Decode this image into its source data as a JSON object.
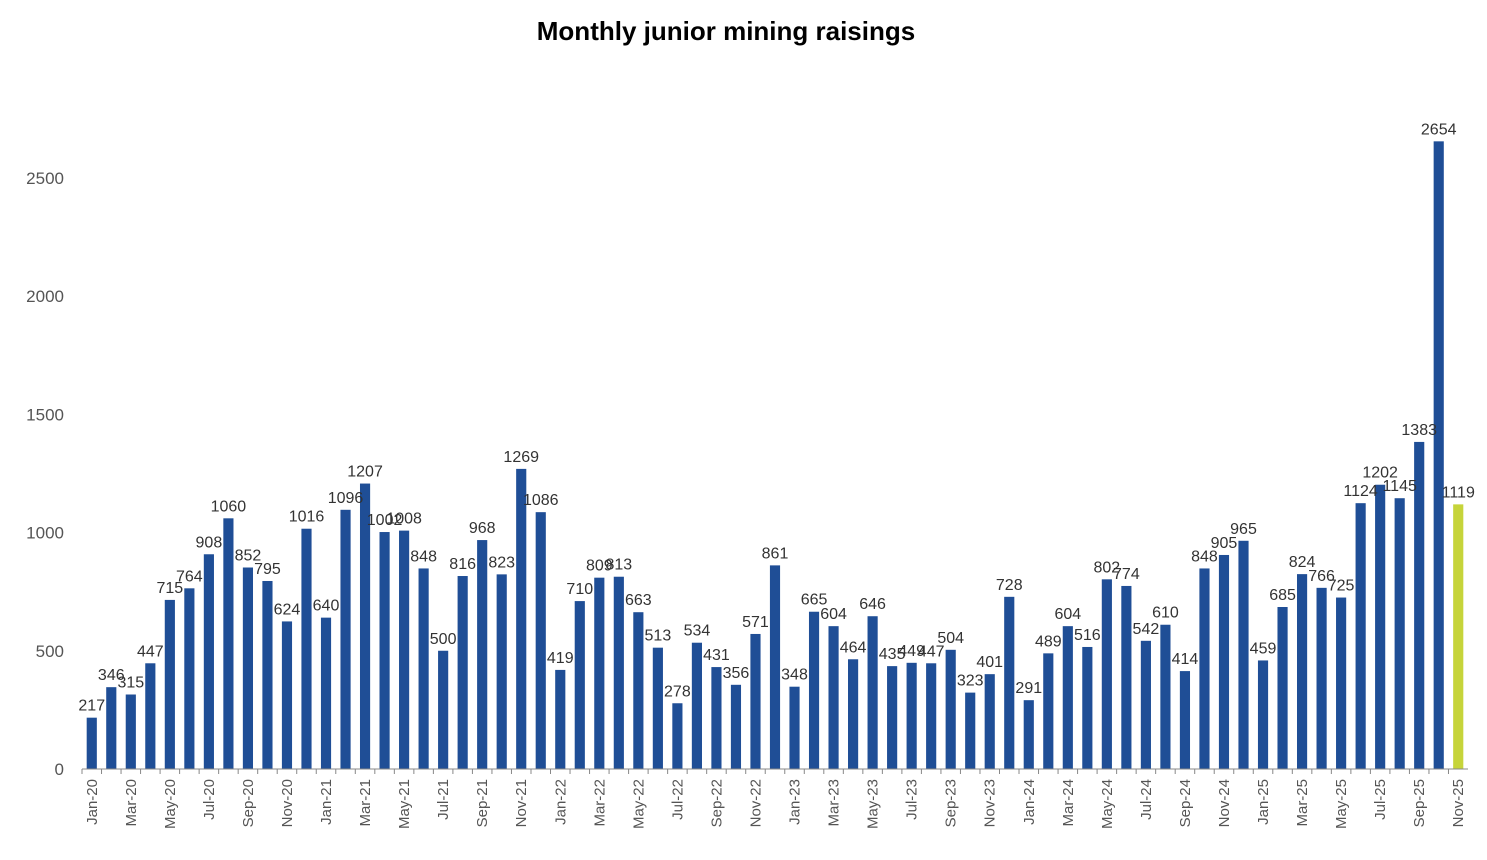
{
  "chart_data": {
    "type": "bar",
    "title": "Monthly junior mining raisings",
    "xlabel": "",
    "ylabel": "",
    "ylim": [
      0,
      2700
    ],
    "yticks": [
      0,
      500,
      1000,
      1500,
      2000,
      2500
    ],
    "grid": false,
    "legend": "none",
    "colors": {
      "bar": "#1f4e96",
      "highlight": "#c6d43a"
    },
    "highlight_index": 70,
    "categories": [
      "Jan-20",
      "Feb-20",
      "Mar-20",
      "Apr-20",
      "May-20",
      "Jun-20",
      "Jul-20",
      "Aug-20",
      "Sep-20",
      "Oct-20",
      "Nov-20",
      "Dec-20",
      "Jan-21",
      "Feb-21",
      "Mar-21",
      "Apr-21",
      "May-21",
      "Jun-21",
      "Jul-21",
      "Aug-21",
      "Sep-21",
      "Oct-21",
      "Nov-21",
      "Dec-21",
      "Jan-22",
      "Feb-22",
      "Mar-22",
      "Apr-22",
      "May-22",
      "Jun-22",
      "Jul-22",
      "Aug-22",
      "Sep-22",
      "Oct-22",
      "Nov-22",
      "Dec-22",
      "Jan-23",
      "Feb-23",
      "Mar-23",
      "Apr-23",
      "May-23",
      "Jun-23",
      "Jul-23",
      "Aug-23",
      "Sep-23",
      "Oct-23",
      "Nov-23",
      "Dec-23",
      "Jan-24",
      "Feb-24",
      "Mar-24",
      "Apr-24",
      "May-24",
      "Jun-24",
      "Jul-24",
      "Aug-24",
      "Sep-24",
      "Oct-24",
      "Nov-24",
      "Dec-24",
      "Jan-25",
      "Feb-25",
      "Mar-25",
      "Apr-25",
      "May-25",
      "Jun-25",
      "Jul-25",
      "Aug-25",
      "Sep-25",
      "Oct-25",
      "Nov-25"
    ],
    "tick_labels": [
      "Jan-20",
      "Mar-20",
      "May-20",
      "Jul-20",
      "Sep-20",
      "Nov-20",
      "Jan-21",
      "Mar-21",
      "May-21",
      "Jul-21",
      "Sep-21",
      "Nov-21",
      "Jan-22",
      "Mar-22",
      "May-22",
      "Jul-22",
      "Sep-22",
      "Nov-22",
      "Jan-23",
      "Mar-23",
      "May-23",
      "Jul-23",
      "Sep-23",
      "Nov-23",
      "Jan-24",
      "Mar-24",
      "May-24",
      "Jul-24",
      "Sep-24",
      "Nov-24",
      "Jan-25",
      "Mar-25",
      "May-25",
      "Jul-25",
      "Sep-25",
      "Nov-25"
    ],
    "values": [
      217,
      346,
      315,
      447,
      715,
      764,
      908,
      1060,
      852,
      795,
      624,
      1016,
      640,
      1096,
      1207,
      1002,
      1008,
      848,
      500,
      816,
      968,
      823,
      1269,
      1086,
      419,
      710,
      809,
      813,
      663,
      513,
      278,
      534,
      431,
      356,
      571,
      861,
      348,
      665,
      604,
      464,
      646,
      435,
      449,
      447,
      504,
      323,
      401,
      728,
      291,
      489,
      604,
      516,
      802,
      774,
      542,
      610,
      414,
      848,
      905,
      965,
      459,
      685,
      824,
      766,
      725,
      1124,
      1202,
      1145,
      1383,
      2654,
      1119
    ]
  }
}
